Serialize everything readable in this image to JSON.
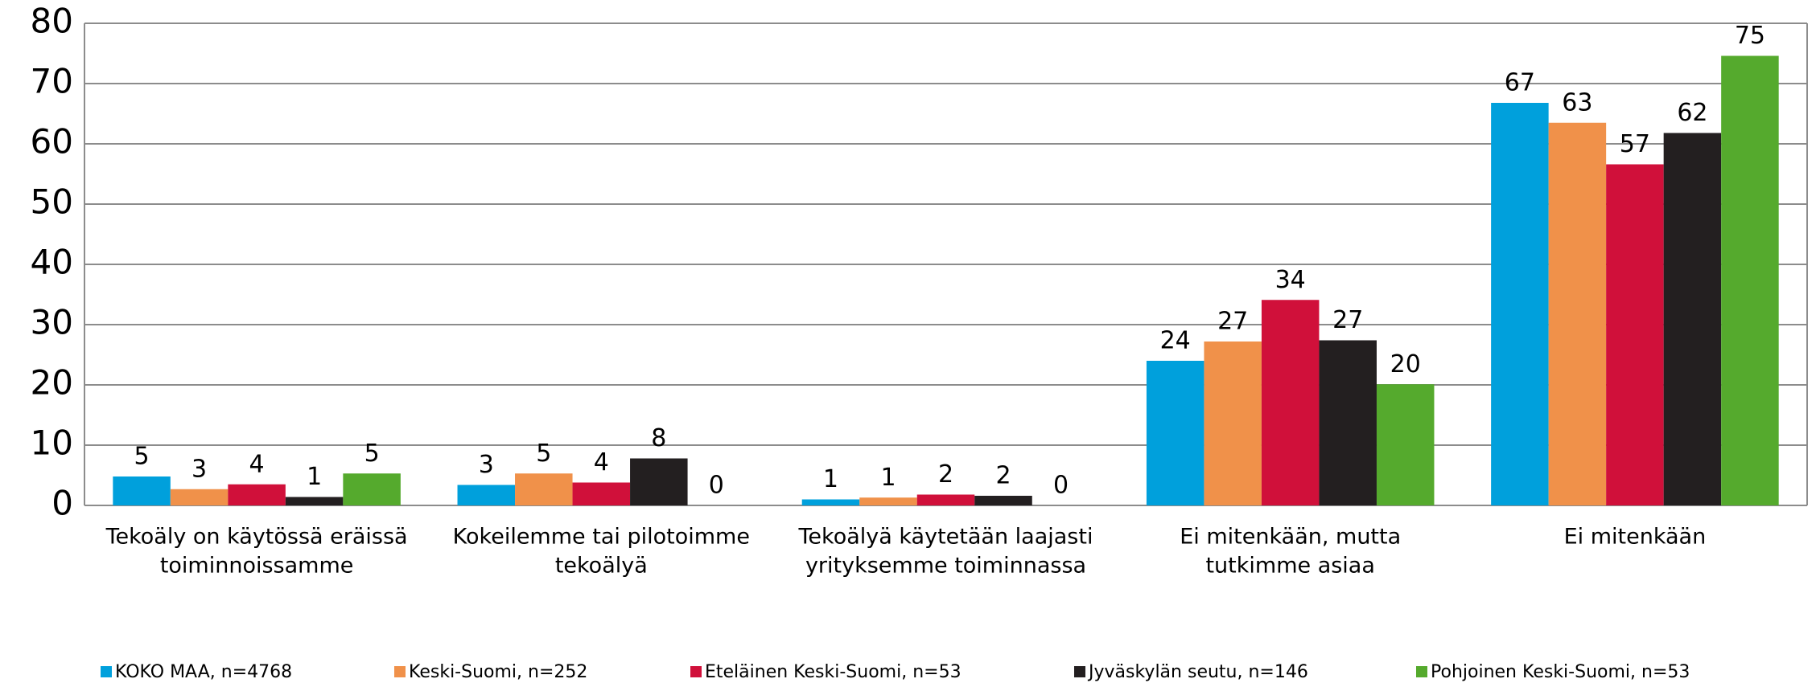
{
  "chart_data": {
    "type": "bar",
    "categories": [
      [
        "Tekoäly on käytössä eräissä",
        "toiminnoissamme"
      ],
      [
        "Kokeilemme tai pilotoimme",
        "tekoälyä"
      ],
      [
        "Tekoälyä käytetään laajasti",
        "yrityksemme toiminnassa"
      ],
      [
        "Ei mitenkään, mutta",
        "tutkimme asiaa"
      ],
      [
        "Ei mitenkään"
      ]
    ],
    "series": [
      {
        "name": "KOKO MAA, n=4768",
        "color": "#00a0dc",
        "values": [
          4.8,
          3.4,
          1.0,
          24.0,
          66.8
        ],
        "value_labels": [
          "5",
          "3",
          "1",
          "24",
          "67"
        ]
      },
      {
        "name": "Keski-Suomi, n=252",
        "color": "#f0914a",
        "values": [
          2.7,
          5.3,
          1.3,
          27.2,
          63.5
        ],
        "value_labels": [
          "3",
          "5",
          "1",
          "27",
          "63"
        ]
      },
      {
        "name": "Eteläinen Keski-Suomi, n=53",
        "color": "#d0103a",
        "values": [
          3.5,
          3.8,
          1.8,
          34.1,
          56.6
        ],
        "value_labels": [
          "4",
          "4",
          "2",
          "34",
          "57"
        ]
      },
      {
        "name": "Jyväskylän seutu, n=146",
        "color": "#231f20",
        "values": [
          1.4,
          7.8,
          1.6,
          27.4,
          61.8
        ],
        "value_labels": [
          "1",
          "8",
          "2",
          "27",
          "62"
        ]
      },
      {
        "name": "Pohjoinen Keski-Suomi, n=53",
        "color": "#55aa2d",
        "values": [
          5.3,
          0,
          0,
          20.1,
          74.6
        ],
        "value_labels": [
          "5",
          "0",
          "0",
          "20",
          "75"
        ]
      }
    ],
    "ylim": [
      0,
      80
    ],
    "yticks": [
      0,
      10,
      20,
      30,
      40,
      50,
      60,
      70,
      80
    ],
    "grid": true,
    "legend": "bottom"
  }
}
